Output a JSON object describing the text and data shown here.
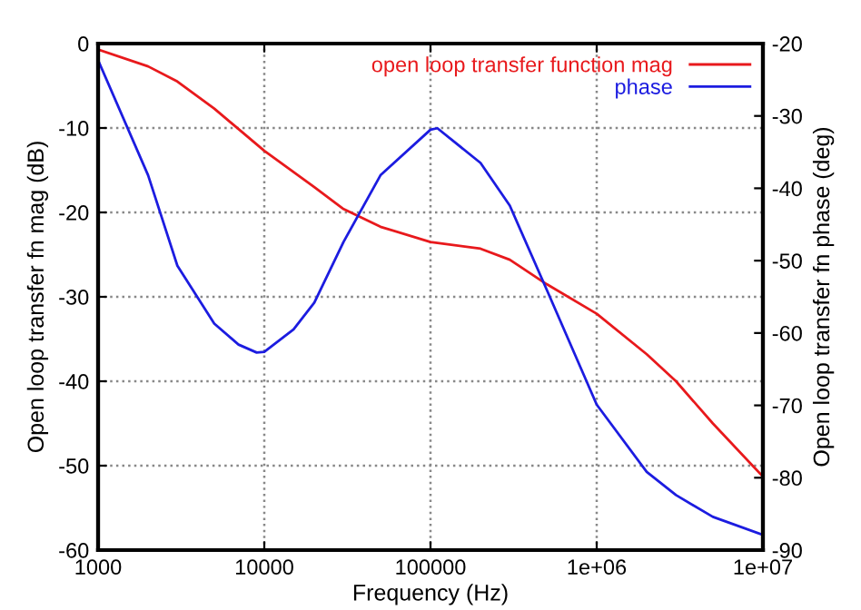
{
  "chart_data": {
    "type": "line",
    "xlabel": "Frequency (Hz)",
    "ylabel": "Open loop transfer fn mag (dB)",
    "y2label": "Open loop transfer fn phase (deg)",
    "log": "x",
    "grid": true,
    "legend": "top right",
    "line_style": "solid",
    "marker": "none",
    "xlim": [
      1000,
      10000000
    ],
    "xticks": [
      1000,
      10000,
      100000,
      {
        "value": 1000000,
        "label": "1e+06"
      },
      {
        "value": 10000000,
        "label": "1e+07"
      }
    ],
    "ylim": [
      -60,
      0
    ],
    "yticks": [
      0,
      -10,
      -20,
      -30,
      -40,
      -50,
      -60
    ],
    "y2lim": [
      -90,
      -20
    ],
    "y2ticks": [
      -20,
      -30,
      -40,
      -50,
      -60,
      -70,
      -80,
      -90
    ],
    "series": [
      {
        "name": "open loop transfer function mag",
        "color": "#e8191c",
        "x": [
          1000,
          2000,
          3000,
          5000,
          10000,
          20000,
          30000,
          50000,
          100000,
          200000,
          300000,
          500000,
          1000000,
          2000000,
          3000000,
          5000000,
          10000000
        ],
        "values": [
          -0.7,
          -2.7,
          -4.5,
          -7.7,
          -12.7,
          -17,
          -19.6,
          -21.7,
          -23.5,
          -24.3,
          -25.6,
          -28.5,
          -32,
          -36.8,
          -40,
          -45,
          -51.3
        ]
      },
      {
        "name": "phase",
        "color": "#1c1ce0",
        "axis": "y2",
        "x": [
          1000,
          2000,
          3000,
          5000,
          7000,
          9000,
          10000,
          15000,
          20000,
          30000,
          50000,
          100000,
          110000,
          200000,
          300000,
          500000,
          1000000,
          2000000,
          3000000,
          5000000,
          10000000
        ],
        "values": [
          -22.3,
          -38.2,
          -50.7,
          -58.7,
          -61.6,
          -62.7,
          -62.6,
          -59.5,
          -55.8,
          -47.4,
          -38.2,
          -31.9,
          -31.7,
          -36.5,
          -42.4,
          -54,
          -69.9,
          -79.2,
          -82.4,
          -85.4,
          -87.9
        ]
      }
    ]
  }
}
